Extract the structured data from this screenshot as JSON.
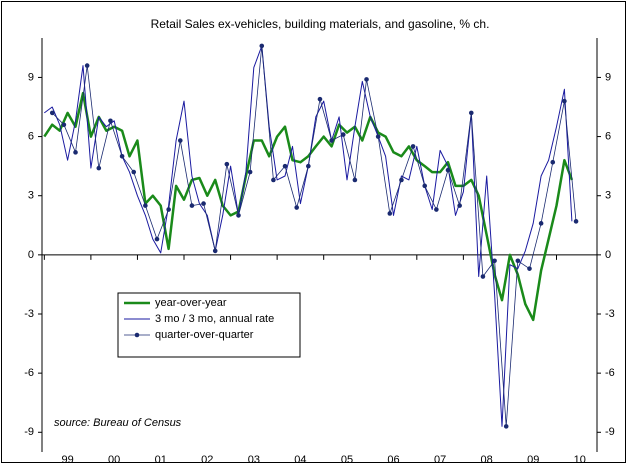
{
  "chart_data": {
    "type": "line",
    "title": "Retail Sales ex-vehicles, building materials, and gasoline, % ch.",
    "source": "source: Bureau of Census",
    "x": [
      1999,
      1999.17,
      1999.33,
      1999.5,
      1999.67,
      1999.83,
      2000,
      2000.17,
      2000.33,
      2000.5,
      2000.67,
      2000.83,
      2001,
      2001.17,
      2001.33,
      2001.5,
      2001.67,
      2001.83,
      2002,
      2002.17,
      2002.33,
      2002.5,
      2002.67,
      2002.83,
      2003,
      2003.17,
      2003.33,
      2003.5,
      2003.67,
      2003.83,
      2004,
      2004.17,
      2004.33,
      2004.5,
      2004.67,
      2004.83,
      2005,
      2005.17,
      2005.33,
      2005.5,
      2005.67,
      2005.83,
      2006,
      2006.17,
      2006.33,
      2006.5,
      2006.67,
      2006.83,
      2007,
      2007.17,
      2007.33,
      2007.5,
      2007.67,
      2007.83,
      2008,
      2008.17,
      2008.33,
      2008.5,
      2008.67,
      2008.83,
      2009,
      2009.17,
      2009.33,
      2009.5,
      2009.67,
      2009.83,
      2010,
      2010.17,
      2010.33
    ],
    "series": [
      {
        "name": "year-over-year",
        "color": "#1a8a1a",
        "line_width": 2.5,
        "values": [
          6.0,
          6.6,
          6.3,
          7.2,
          6.5,
          8.2,
          6.0,
          7.0,
          6.3,
          6.5,
          6.3,
          5.0,
          5.8,
          2.6,
          3.0,
          2.5,
          0.3,
          3.5,
          2.8,
          3.8,
          3.9,
          3.0,
          3.8,
          2.5,
          2.0,
          2.2,
          4.0,
          5.8,
          5.8,
          5.0,
          6.0,
          6.5,
          4.8,
          4.7,
          5.0,
          5.5,
          6.0,
          5.5,
          6.6,
          6.2,
          6.5,
          5.8,
          7.0,
          6.2,
          6.0,
          5.2,
          5.0,
          5.5,
          4.8,
          4.5,
          4.2,
          4.2,
          4.7,
          3.5,
          3.5,
          3.8,
          3.0,
          1.0,
          -1.0,
          -2.3,
          0.0,
          -1.0,
          -2.5,
          -3.3,
          -0.8,
          0.8,
          2.5,
          4.8,
          3.8
        ]
      },
      {
        "name": "3 mo / 3 mo, annual rate",
        "color": "#1a1aa0",
        "line_width": 1,
        "values": [
          7.2,
          7.5,
          6.6,
          4.8,
          6.8,
          9.6,
          4.4,
          7.0,
          6.5,
          6.8,
          5.0,
          4.2,
          3.0,
          2.0,
          0.8,
          0.1,
          2.5,
          5.8,
          7.8,
          4.0,
          2.6,
          2.0,
          0.2,
          2.0,
          4.5,
          2.0,
          4.2,
          9.5,
          10.6,
          6.5,
          3.8,
          4.0,
          5.5,
          2.6,
          4.5,
          7.0,
          7.8,
          5.8,
          7.0,
          3.8,
          6.5,
          8.8,
          7.0,
          6.0,
          5.0,
          2.0,
          4.0,
          3.8,
          5.5,
          3.5,
          2.3,
          5.3,
          4.5,
          2.0,
          3.2,
          7.2,
          -1.1,
          4.0,
          -2.0,
          -8.7,
          -0.5,
          -0.7,
          0.2,
          1.6,
          4.0,
          4.8,
          6.5,
          8.4,
          1.7
        ]
      },
      {
        "name": "quarter-over-quarter",
        "color": "#1a2a70",
        "line_width": 0.8,
        "marker": "circle",
        "x": [
          1999.17,
          1999.42,
          1999.67,
          1999.92,
          2000.17,
          2000.42,
          2000.67,
          2000.92,
          2001.17,
          2001.42,
          2001.67,
          2001.92,
          2002.17,
          2002.42,
          2002.67,
          2002.92,
          2003.17,
          2003.42,
          2003.67,
          2003.92,
          2004.17,
          2004.42,
          2004.67,
          2004.92,
          2005.17,
          2005.42,
          2005.67,
          2005.92,
          2006.17,
          2006.42,
          2006.67,
          2006.92,
          2007.17,
          2007.42,
          2007.67,
          2007.92,
          2008.17,
          2008.42,
          2008.67,
          2008.92,
          2009.17,
          2009.42,
          2009.67,
          2009.92,
          2010.17,
          2010.42
        ],
        "values": [
          7.2,
          6.6,
          5.2,
          9.6,
          4.4,
          6.8,
          5.0,
          4.2,
          2.5,
          0.8,
          2.3,
          5.8,
          2.5,
          2.6,
          0.2,
          4.6,
          2.0,
          4.2,
          10.6,
          3.8,
          4.5,
          2.4,
          4.5,
          7.9,
          5.8,
          6.1,
          3.8,
          8.9,
          6.0,
          2.1,
          3.8,
          5.5,
          3.5,
          2.3,
          4.3,
          2.5,
          7.2,
          -1.1,
          -0.3,
          -8.7,
          -0.3,
          -0.7,
          1.6,
          4.7,
          7.8,
          1.7
        ]
      }
    ],
    "xlim": [
      1998.95,
      2010.87
    ],
    "xticks": [
      {
        "value": 1999.5,
        "label": "99"
      },
      {
        "value": 2000.5,
        "label": "00"
      },
      {
        "value": 2001.5,
        "label": "01"
      },
      {
        "value": 2002.5,
        "label": "02"
      },
      {
        "value": 2003.5,
        "label": "03"
      },
      {
        "value": 2004.5,
        "label": "04"
      },
      {
        "value": 2005.5,
        "label": "05"
      },
      {
        "value": 2006.5,
        "label": "06"
      },
      {
        "value": 2007.5,
        "label": "07"
      },
      {
        "value": 2008.5,
        "label": "08"
      },
      {
        "value": 2009.5,
        "label": "09"
      },
      {
        "value": 2010.5,
        "label": "10"
      }
    ],
    "ylim": [
      -10,
      11
    ],
    "yticks": [
      -9,
      -6,
      -3,
      0,
      3,
      6,
      9
    ]
  }
}
